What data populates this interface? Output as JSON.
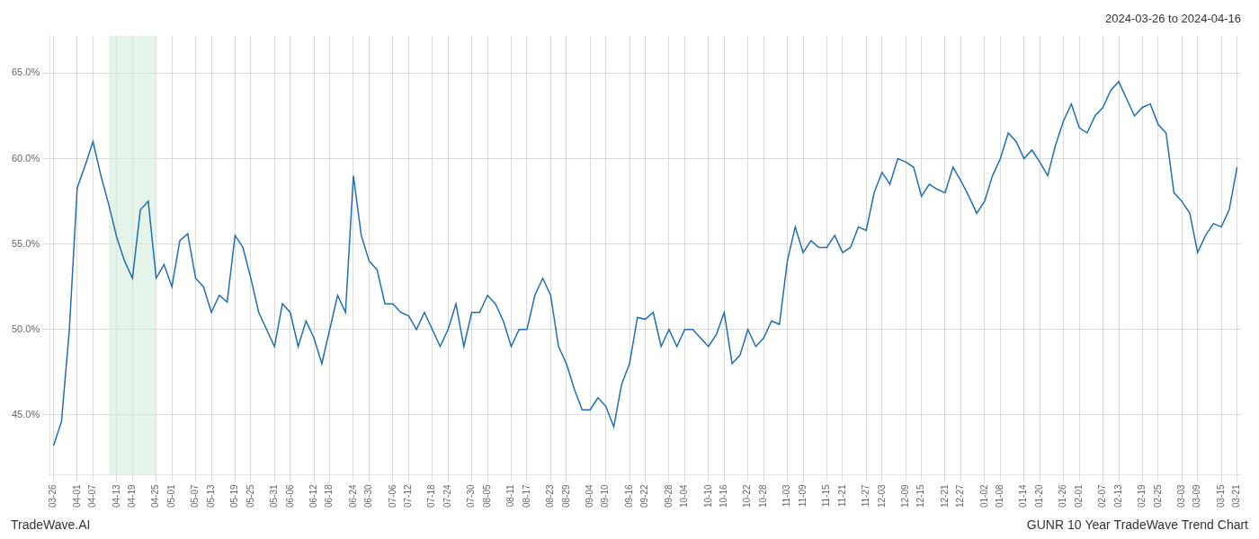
{
  "chart_data": {
    "type": "line",
    "title": "2024-03-26 to 2024-04-16",
    "annotations": [
      "TradeWave.AI",
      "GUNR 10 Year TradeWave Trend Chart"
    ],
    "color": "#1f6eb5",
    "grid": true,
    "shade_start": 7,
    "shade_end": 13,
    "shade_color": "#d4edda",
    "ylim": [
      0.415,
      0.672
    ],
    "yticks": [
      {
        "value": 0.45,
        "label": "45.0%"
      },
      {
        "value": 0.5,
        "label": "50.0%"
      },
      {
        "value": 0.55,
        "label": "55.0%"
      },
      {
        "value": 0.6,
        "label": "60.0%"
      },
      {
        "value": 0.65,
        "label": "65.0%"
      }
    ],
    "categories": [
      "03-26",
      null,
      null,
      "04-01",
      null,
      "04-07",
      null,
      null,
      "04-13",
      null,
      "04-19",
      null,
      null,
      "04-25",
      null,
      "05-01",
      null,
      null,
      "05-07",
      null,
      "05-13",
      null,
      null,
      "05-19",
      null,
      "05-25",
      null,
      null,
      "05-31",
      null,
      "06-06",
      null,
      null,
      "06-12",
      null,
      "06-18",
      null,
      null,
      "06-24",
      null,
      "06-30",
      null,
      null,
      "07-06",
      null,
      "07-12",
      null,
      null,
      "07-18",
      null,
      "07-24",
      null,
      null,
      "07-30",
      null,
      "08-05",
      null,
      null,
      "08-11",
      null,
      "08-17",
      null,
      null,
      "08-23",
      null,
      "08-29",
      null,
      null,
      "09-04",
      null,
      "09-10",
      null,
      null,
      "09-16",
      null,
      "09-22",
      null,
      null,
      "09-28",
      null,
      "10-04",
      null,
      null,
      "10-10",
      null,
      "10-16",
      null,
      null,
      "10-22",
      null,
      "10-28",
      null,
      null,
      "11-03",
      null,
      "11-09",
      null,
      null,
      "11-15",
      null,
      "11-21",
      null,
      null,
      "11-27",
      null,
      "12-03",
      null,
      null,
      "12-09",
      null,
      "12-15",
      null,
      null,
      "12-21",
      null,
      "12-27",
      null,
      null,
      "01-02",
      null,
      "01-08",
      null,
      null,
      "01-14",
      null,
      "01-20",
      null,
      null,
      "01-26",
      null,
      "02-01",
      null,
      null,
      "02-07",
      null,
      "02-13",
      null,
      null,
      "02-19",
      null,
      "02-25",
      null,
      null,
      "03-03",
      null,
      "03-09",
      null,
      null,
      "03-15",
      null,
      "03-21"
    ],
    "values": [
      0.432,
      0.446,
      0.5,
      0.583,
      0.596,
      0.61,
      0.59,
      0.573,
      0.554,
      0.54,
      0.53,
      0.57,
      0.575,
      0.53,
      0.538,
      0.525,
      0.552,
      0.556,
      0.53,
      0.525,
      0.51,
      0.52,
      0.516,
      0.555,
      0.548,
      0.53,
      0.51,
      0.5,
      0.49,
      0.515,
      0.51,
      0.49,
      0.505,
      0.495,
      0.48,
      0.5,
      0.52,
      0.51,
      0.59,
      0.555,
      0.54,
      0.535,
      0.515,
      0.515,
      0.51,
      0.508,
      0.5,
      0.51,
      0.5,
      0.49,
      0.5,
      0.515,
      0.49,
      0.51,
      0.51,
      0.52,
      0.515,
      0.505,
      0.49,
      0.5,
      0.5,
      0.52,
      0.53,
      0.52,
      0.49,
      0.48,
      0.465,
      0.453,
      0.453,
      0.46,
      0.455,
      0.443,
      0.468,
      0.48,
      0.507,
      0.506,
      0.51,
      0.49,
      0.5,
      0.49,
      0.5,
      0.5,
      0.495,
      0.49,
      0.497,
      0.51,
      0.48,
      0.485,
      0.5,
      0.49,
      0.495,
      0.505,
      0.503,
      0.54,
      0.56,
      0.545,
      0.552,
      0.548,
      0.548,
      0.555,
      0.545,
      0.548,
      0.56,
      0.558,
      0.58,
      0.592,
      0.585,
      0.6,
      0.598,
      0.595,
      0.578,
      0.585,
      0.582,
      0.58,
      0.595,
      0.587,
      0.578,
      0.568,
      0.575,
      0.59,
      0.6,
      0.615,
      0.61,
      0.6,
      0.605,
      0.598,
      0.59,
      0.608,
      0.622,
      0.632,
      0.618,
      0.615,
      0.625,
      0.63,
      0.64,
      0.645,
      0.635,
      0.625,
      0.63,
      0.632,
      0.62,
      0.615,
      0.58,
      0.575,
      0.568,
      0.545,
      0.555,
      0.562,
      0.56,
      0.57,
      0.595
    ]
  }
}
